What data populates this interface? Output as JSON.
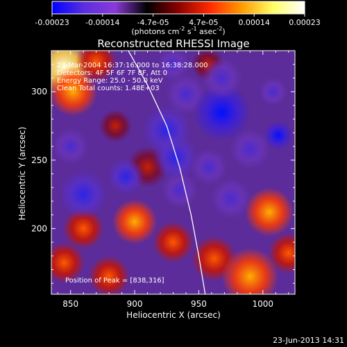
{
  "chart_data": {
    "type": "heatmap",
    "title": "Reconstructed RHESSI Image",
    "xlabel": "Heliocentric X (arcsec)",
    "ylabel": "Heliocentric Y (arcsec)",
    "xlim": [
      835,
      1025
    ],
    "ylim": [
      152,
      330
    ],
    "xticks": [
      850,
      900,
      950,
      1000
    ],
    "yticks": [
      200,
      250,
      300
    ],
    "colorbar": {
      "units_prefix": "(photons cm",
      "units_exp1": "-2",
      "units_mid": " s",
      "units_exp2": "-1",
      "units_mid2": " asec",
      "units_exp3": "-2",
      "units_suffix": ")",
      "range": [
        -0.00023,
        0.00023
      ],
      "ticks": [
        "-0.00023",
        "-0.00014",
        "-4.7e-05",
        "4.7e-05",
        "0.00014",
        "0.00023"
      ],
      "stops": [
        "#0000ff",
        "#5a2ee0",
        "#8a3ad8",
        "#000000",
        "#8a0000",
        "#ff2a00",
        "#ff9a00",
        "#ffff66",
        "#ffffff"
      ]
    },
    "annotations": {
      "time": "23-Mar-2004 16:37:16.000 to 16:38:28.000",
      "detectors": "Detectors: 4F 5F 6F 7F 8F, Att 0",
      "energy": "Energy Range: 25.0 - 50.0 keV",
      "clean": "Clean     Total counts: 1.48E+03",
      "peak": "Position of Peak = [838,316]"
    },
    "footer": "23-Jun-2013 14:31",
    "limb_curve": [
      [
        895,
        330
      ],
      [
        910,
        305
      ],
      [
        925,
        275
      ],
      [
        935,
        245
      ],
      [
        944,
        210
      ],
      [
        950,
        180
      ],
      [
        955,
        152
      ]
    ],
    "blobs": [
      {
        "x": 845,
        "y": 318,
        "r": 14,
        "v": 1.0
      },
      {
        "x": 852,
        "y": 300,
        "r": 12,
        "v": 0.7
      },
      {
        "x": 870,
        "y": 322,
        "r": 10,
        "v": 0.55
      },
      {
        "x": 910,
        "y": 245,
        "r": 10,
        "v": 0.35
      },
      {
        "x": 900,
        "y": 205,
        "r": 11,
        "v": 0.75
      },
      {
        "x": 860,
        "y": 200,
        "r": 10,
        "v": 0.5
      },
      {
        "x": 845,
        "y": 175,
        "r": 10,
        "v": 0.55
      },
      {
        "x": 880,
        "y": 165,
        "r": 10,
        "v": 0.45
      },
      {
        "x": 930,
        "y": 190,
        "r": 10,
        "v": 0.5
      },
      {
        "x": 962,
        "y": 178,
        "r": 11,
        "v": 0.6
      },
      {
        "x": 1005,
        "y": 212,
        "r": 12,
        "v": 0.8
      },
      {
        "x": 990,
        "y": 165,
        "r": 14,
        "v": 0.7
      },
      {
        "x": 1020,
        "y": 182,
        "r": 10,
        "v": 0.6
      },
      {
        "x": 957,
        "y": 320,
        "r": 8,
        "v": 0.3
      },
      {
        "x": 885,
        "y": 275,
        "r": 8,
        "v": 0.35
      },
      {
        "x": 850,
        "y": 260,
        "r": 9,
        "v": -0.55
      },
      {
        "x": 860,
        "y": 225,
        "r": 12,
        "v": -0.8
      },
      {
        "x": 893,
        "y": 238,
        "r": 9,
        "v": -0.7
      },
      {
        "x": 925,
        "y": 272,
        "r": 12,
        "v": -0.8
      },
      {
        "x": 932,
        "y": 252,
        "r": 11,
        "v": -0.75
      },
      {
        "x": 940,
        "y": 298,
        "r": 10,
        "v": -0.55
      },
      {
        "x": 968,
        "y": 285,
        "r": 14,
        "v": -0.95
      },
      {
        "x": 968,
        "y": 310,
        "r": 10,
        "v": -0.6
      },
      {
        "x": 990,
        "y": 258,
        "r": 10,
        "v": -0.6
      },
      {
        "x": 1012,
        "y": 268,
        "r": 7,
        "v": -1.0
      },
      {
        "x": 975,
        "y": 222,
        "r": 10,
        "v": -0.55
      },
      {
        "x": 935,
        "y": 228,
        "r": 9,
        "v": -0.5
      },
      {
        "x": 958,
        "y": 245,
        "r": 9,
        "v": -0.6
      },
      {
        "x": 1008,
        "y": 300,
        "r": 7,
        "v": -0.4
      },
      {
        "x": 930,
        "y": 320,
        "r": 8,
        "v": -0.4
      }
    ]
  }
}
